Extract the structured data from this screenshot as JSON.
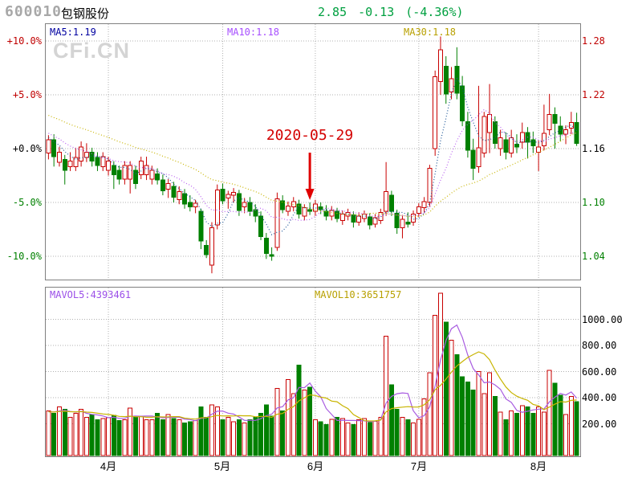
{
  "header": {
    "stock_code": "600010",
    "stock_name": "包钢股份",
    "price": "2.85",
    "change": "-0.13",
    "change_pct": "(-4.36%)",
    "quote_color": "#00a040"
  },
  "watermark": "CFi.CN",
  "chart_data": {
    "type": "candlestick+volume",
    "title": "600010 包钢股份",
    "legend_position": "top-inside",
    "grid": true,
    "price_axis": {
      "min": 1.015,
      "max": 1.3,
      "ticks": [
        {
          "pct_label": "+10.0%",
          "price_label": "1.28",
          "price": 1.28,
          "color": "#c00000"
        },
        {
          "pct_label": "+5.0%",
          "price_label": "1.22",
          "price": 1.22,
          "color": "#c00000"
        },
        {
          "pct_label": "+0.0%",
          "price_label": "1.16",
          "price": 1.16,
          "color": "#000000"
        },
        {
          "pct_label": "-5.0%",
          "price_label": "1.10",
          "price": 1.1,
          "color": "#008000"
        },
        {
          "pct_label": "-10.0%",
          "price_label": "1.04",
          "price": 1.04,
          "color": "#008000"
        }
      ]
    },
    "volume_axis": {
      "ticks": [
        {
          "label": "1000.00",
          "value": 1000
        },
        {
          "label": "800.00",
          "value": 800
        },
        {
          "label": "600.00",
          "value": 600
        },
        {
          "label": "400.00",
          "value": 400
        },
        {
          "label": "200.00",
          "value": 200
        }
      ]
    },
    "months": [
      {
        "label": "4月",
        "day": 11
      },
      {
        "label": "5月",
        "day": 32
      },
      {
        "label": "6月",
        "day": 49
      },
      {
        "label": "7月",
        "day": 68
      },
      {
        "label": "8月",
        "day": 90
      }
    ],
    "ma_lines": [
      {
        "label": "MA5:1.19",
        "period": 5,
        "line_color": "#205898",
        "label_color": "#0000a0"
      },
      {
        "label": "MA10:1.18",
        "period": 10,
        "line_color": "#b961f0",
        "label_color": "#a64dff"
      },
      {
        "label": "MA30:1.18",
        "period": 30,
        "line_color": "#c8b400",
        "label_color": "#b8a000"
      }
    ],
    "volume_ma_lines": [
      {
        "label": "MAVOL5:4393461",
        "period": 5,
        "line_color": "#a85ce0",
        "label_color": "#9b4fe8"
      },
      {
        "label": "MAVOL10:3651757",
        "period": 10,
        "line_color": "#c8b400",
        "label_color": "#b8a000"
      }
    ],
    "annotation": {
      "label": "2020-05-29",
      "day": 48,
      "arrow_color": "#e00000"
    },
    "colors": {
      "up": "#c80000",
      "down": "#008000",
      "grid": "#b0b0b0",
      "frame": "#808080"
    },
    "candles_ohlc": [
      [
        1.155,
        1.175,
        1.148,
        1.17
      ],
      [
        1.17,
        1.176,
        1.14,
        1.151
      ],
      [
        1.145,
        1.162,
        1.14,
        1.156
      ],
      [
        1.148,
        1.153,
        1.12,
        1.136
      ],
      [
        1.14,
        1.156,
        1.135,
        1.146
      ],
      [
        1.14,
        1.161,
        1.135,
        1.15
      ],
      [
        1.146,
        1.168,
        1.14,
        1.162
      ],
      [
        1.15,
        1.166,
        1.145,
        1.156
      ],
      [
        1.156,
        1.161,
        1.14,
        1.146
      ],
      [
        1.15,
        1.156,
        1.135,
        1.141
      ],
      [
        1.14,
        1.156,
        1.135,
        1.151
      ],
      [
        1.136,
        1.151,
        1.13,
        1.146
      ],
      [
        1.141,
        1.146,
        1.115,
        1.131
      ],
      [
        1.136,
        1.141,
        1.12,
        1.126
      ],
      [
        1.126,
        1.146,
        1.12,
        1.141
      ],
      [
        1.126,
        1.146,
        1.11,
        1.141
      ],
      [
        1.136,
        1.141,
        1.115,
        1.121
      ],
      [
        1.131,
        1.151,
        1.126,
        1.146
      ],
      [
        1.131,
        1.151,
        1.125,
        1.141
      ],
      [
        1.126,
        1.141,
        1.12,
        1.136
      ],
      [
        1.132,
        1.138,
        1.12,
        1.125
      ],
      [
        1.125,
        1.131,
        1.108,
        1.113
      ],
      [
        1.115,
        1.126,
        1.105,
        1.121
      ],
      [
        1.118,
        1.123,
        1.1,
        1.106
      ],
      [
        1.103,
        1.118,
        1.098,
        1.112
      ],
      [
        1.11,
        1.115,
        1.093,
        1.098
      ],
      [
        1.1,
        1.108,
        1.09,
        1.095
      ],
      [
        1.095,
        1.103,
        1.088,
        1.099
      ],
      [
        1.09,
        1.093,
        1.048,
        1.057
      ],
      [
        1.052,
        1.058,
        1.038,
        1.042
      ],
      [
        1.03,
        1.078,
        1.021,
        1.072
      ],
      [
        1.075,
        1.12,
        1.07,
        1.114
      ],
      [
        1.115,
        1.121,
        1.098,
        1.102
      ],
      [
        1.105,
        1.113,
        1.093,
        1.109
      ],
      [
        1.108,
        1.116,
        1.1,
        1.111
      ],
      [
        1.11,
        1.114,
        1.085,
        1.091
      ],
      [
        1.095,
        1.105,
        1.088,
        1.1
      ],
      [
        1.1,
        1.106,
        1.085,
        1.09
      ],
      [
        1.092,
        1.098,
        1.078,
        1.085
      ],
      [
        1.085,
        1.09,
        1.058,
        1.062
      ],
      [
        1.06,
        1.066,
        1.037,
        1.043
      ],
      [
        1.042,
        1.05,
        1.035,
        1.04
      ],
      [
        1.05,
        1.111,
        1.046,
        1.104
      ],
      [
        1.102,
        1.108,
        1.088,
        1.092
      ],
      [
        1.09,
        1.101,
        1.085,
        1.096
      ],
      [
        1.095,
        1.106,
        1.09,
        1.101
      ],
      [
        1.098,
        1.103,
        1.082,
        1.087
      ],
      [
        1.085,
        1.098,
        1.08,
        1.094
      ],
      [
        1.092,
        1.1,
        1.086,
        1.09
      ],
      [
        1.09,
        1.103,
        1.085,
        1.098
      ],
      [
        1.095,
        1.1,
        1.087,
        1.092
      ],
      [
        1.09,
        1.097,
        1.08,
        1.085
      ],
      [
        1.085,
        1.096,
        1.08,
        1.091
      ],
      [
        1.09,
        1.094,
        1.078,
        1.082
      ],
      [
        1.08,
        1.091,
        1.075,
        1.087
      ],
      [
        1.085,
        1.093,
        1.08,
        1.089
      ],
      [
        1.086,
        1.09,
        1.072,
        1.078
      ],
      [
        1.078,
        1.089,
        1.074,
        1.085
      ],
      [
        1.082,
        1.091,
        1.078,
        1.087
      ],
      [
        1.084,
        1.088,
        1.07,
        1.075
      ],
      [
        1.076,
        1.087,
        1.072,
        1.083
      ],
      [
        1.08,
        1.093,
        1.076,
        1.089
      ],
      [
        1.09,
        1.145,
        1.085,
        1.112
      ],
      [
        1.108,
        1.113,
        1.085,
        1.09
      ],
      [
        1.088,
        1.092,
        1.065,
        1.072
      ],
      [
        1.072,
        1.086,
        1.06,
        1.081
      ],
      [
        1.078,
        1.089,
        1.072,
        1.076
      ],
      [
        1.078,
        1.091,
        1.074,
        1.087
      ],
      [
        1.088,
        1.099,
        1.084,
        1.095
      ],
      [
        1.094,
        1.106,
        1.088,
        1.101
      ],
      [
        1.1,
        1.142,
        1.095,
        1.138
      ],
      [
        1.16,
        1.247,
        1.152,
        1.24
      ],
      [
        1.235,
        1.285,
        1.22,
        1.27
      ],
      [
        1.252,
        1.263,
        1.21,
        1.221
      ],
      [
        1.223,
        1.251,
        1.215,
        1.238
      ],
      [
        1.252,
        1.273,
        1.215,
        1.222
      ],
      [
        1.23,
        1.241,
        1.185,
        1.191
      ],
      [
        1.19,
        1.201,
        1.15,
        1.158
      ],
      [
        1.158,
        1.171,
        1.125,
        1.138
      ],
      [
        1.14,
        1.23,
        1.133,
        1.161
      ],
      [
        1.155,
        1.201,
        1.15,
        1.196
      ],
      [
        1.178,
        1.232,
        1.155,
        1.198
      ],
      [
        1.19,
        1.196,
        1.16,
        1.166
      ],
      [
        1.16,
        1.181,
        1.152,
        1.172
      ],
      [
        1.17,
        1.178,
        1.148,
        1.156
      ],
      [
        1.155,
        1.181,
        1.15,
        1.172
      ],
      [
        1.165,
        1.176,
        1.155,
        1.162
      ],
      [
        1.167,
        1.189,
        1.16,
        1.178
      ],
      [
        1.178,
        1.184,
        1.149,
        1.167
      ],
      [
        1.17,
        1.179,
        1.155,
        1.163
      ],
      [
        1.156,
        1.169,
        1.135,
        1.162
      ],
      [
        1.163,
        1.209,
        1.158,
        1.177
      ],
      [
        1.181,
        1.221,
        1.175,
        1.198
      ],
      [
        1.198,
        1.206,
        1.16,
        1.188
      ],
      [
        1.185,
        1.196,
        1.168,
        1.176
      ],
      [
        1.176,
        1.186,
        1.165,
        1.181
      ],
      [
        1.183,
        1.201,
        1.176,
        1.189
      ],
      [
        1.189,
        1.2,
        1.163,
        1.166
      ]
    ],
    "volumes": [
      300,
      280,
      330,
      310,
      250,
      280,
      310,
      250,
      270,
      230,
      240,
      245,
      265,
      225,
      230,
      320,
      260,
      255,
      230,
      230,
      280,
      230,
      270,
      240,
      230,
      205,
      215,
      225,
      330,
      250,
      345,
      330,
      230,
      250,
      215,
      230,
      205,
      230,
      250,
      280,
      345,
      260,
      470,
      300,
      540,
      430,
      650,
      460,
      480,
      230,
      215,
      195,
      235,
      250,
      240,
      205,
      195,
      230,
      240,
      210,
      220,
      250,
      870,
      500,
      310,
      250,
      230,
      205,
      235,
      390,
      590,
      1030,
      1200,
      980,
      840,
      730,
      560,
      520,
      460,
      600,
      430,
      590,
      410,
      290,
      230,
      300,
      280,
      340,
      330,
      280,
      330,
      290,
      610,
      510,
      420,
      270,
      410,
      370
    ],
    "prehistory_closes": [
      1.228,
      1.226,
      1.224,
      1.222,
      1.22,
      1.218,
      1.216,
      1.214,
      1.212,
      1.21,
      1.208,
      1.206,
      1.204,
      1.202,
      1.2,
      1.198,
      1.196,
      1.194,
      1.192,
      1.19,
      1.188,
      1.186,
      1.184,
      1.182,
      1.18,
      1.178,
      1.176,
      1.174,
      1.172,
      1.17
    ],
    "prehistory_volumes": [
      290,
      290,
      290,
      290,
      290,
      290,
      290,
      290,
      290,
      290
    ]
  }
}
